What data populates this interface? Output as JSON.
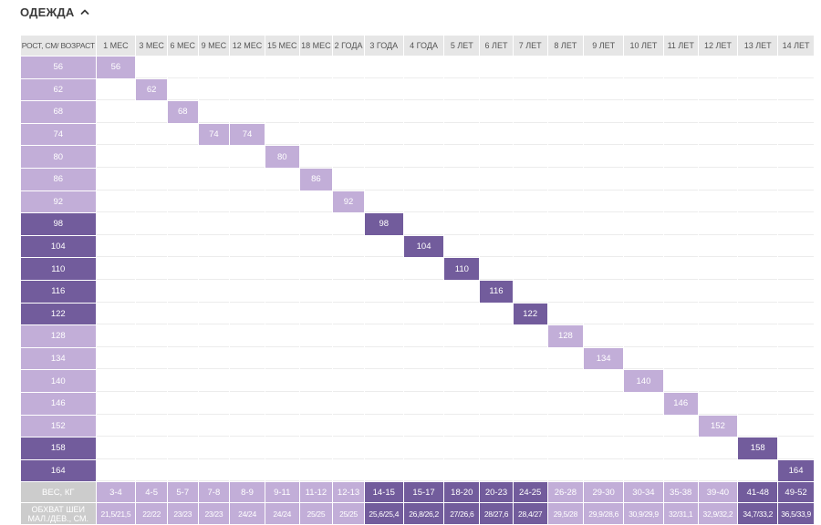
{
  "section": {
    "title": "ОДЕЖДА",
    "chevron_icon": "chevron-up-icon"
  },
  "colors": {
    "light": "#c2aed8",
    "dark": "#725c9c",
    "header_bg": "#e6e6e6",
    "footer_head_bg": "#cccccc"
  },
  "table": {
    "corner_label": "РОСТ, СМ/ ВОЗРАСТ",
    "columns": [
      "1 МЕС",
      "3 МЕС",
      "6 МЕС",
      "9 МЕС",
      "12 МЕС",
      "15 МЕС",
      "18 МЕС",
      "2 ГОДА",
      "3 ГОДА",
      "4 ГОДА",
      "5 ЛЕТ",
      "6 ЛЕТ",
      "7 ЛЕТ",
      "8 ЛЕТ",
      "9 ЛЕТ",
      "10 ЛЕТ",
      "11 ЛЕТ",
      "12 ЛЕТ",
      "13 ЛЕТ",
      "14 ЛЕТ"
    ],
    "column_tones": [
      "light",
      "light",
      "light",
      "light",
      "light",
      "light",
      "light",
      "light",
      "dark",
      "dark",
      "dark",
      "dark",
      "dark",
      "light",
      "light",
      "light",
      "light",
      "light",
      "dark",
      "dark"
    ],
    "rows": [
      {
        "height": "56",
        "tone": "light",
        "cols": [
          0
        ]
      },
      {
        "height": "62",
        "tone": "light",
        "cols": [
          1
        ]
      },
      {
        "height": "68",
        "tone": "light",
        "cols": [
          2
        ]
      },
      {
        "height": "74",
        "tone": "light",
        "cols": [
          3,
          4
        ]
      },
      {
        "height": "80",
        "tone": "light",
        "cols": [
          5
        ]
      },
      {
        "height": "86",
        "tone": "light",
        "cols": [
          6
        ]
      },
      {
        "height": "92",
        "tone": "light",
        "cols": [
          7
        ]
      },
      {
        "height": "98",
        "tone": "dark",
        "cols": [
          8
        ]
      },
      {
        "height": "104",
        "tone": "dark",
        "cols": [
          9
        ]
      },
      {
        "height": "110",
        "tone": "dark",
        "cols": [
          10
        ]
      },
      {
        "height": "116",
        "tone": "dark",
        "cols": [
          11
        ]
      },
      {
        "height": "122",
        "tone": "dark",
        "cols": [
          12
        ]
      },
      {
        "height": "128",
        "tone": "light",
        "cols": [
          13
        ]
      },
      {
        "height": "134",
        "tone": "light",
        "cols": [
          14
        ]
      },
      {
        "height": "140",
        "tone": "light",
        "cols": [
          15
        ]
      },
      {
        "height": "146",
        "tone": "light",
        "cols": [
          16
        ]
      },
      {
        "height": "152",
        "tone": "light",
        "cols": [
          17
        ]
      },
      {
        "height": "158",
        "tone": "dark",
        "cols": [
          18
        ]
      },
      {
        "height": "164",
        "tone": "dark",
        "cols": [
          19
        ]
      }
    ],
    "weight": {
      "label": "ВЕС, КГ",
      "values": [
        "3-4",
        "4-5",
        "5-7",
        "7-8",
        "8-9",
        "9-11",
        "11-12",
        "12-13",
        "14-15",
        "15-17",
        "18-20",
        "20-23",
        "24-25",
        "26-28",
        "29-30",
        "30-34",
        "35-38",
        "39-40",
        "41-48",
        "49-52"
      ]
    },
    "neck": {
      "label_line1": "ОБХВАТ ШЕИ",
      "label_line2": "МАЛ./ДЕВ., СМ.",
      "values": [
        "21,5/21,5",
        "22/22",
        "23/23",
        "23/23",
        "24/24",
        "24/24",
        "25/25",
        "25/25",
        "25,6/25,4",
        "26,8/26,2",
        "27/26,6",
        "28/27,6",
        "28,4/27",
        "29,5/28",
        "29,9/28,6",
        "30,9/29,9",
        "32/31,1",
        "32,9/32,2",
        "34,7/33,2",
        "36,5/33,9"
      ]
    }
  }
}
